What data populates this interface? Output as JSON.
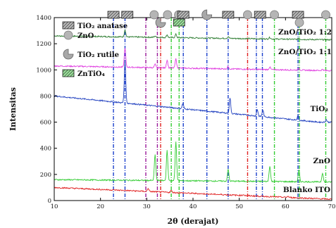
{
  "chart_data": {
    "type": "line",
    "xlabel": "2θ (derajat)",
    "ylabel": "Intensitas",
    "xlim": [
      10,
      70
    ],
    "ylim": [
      0,
      1400
    ],
    "x_ticks": [
      10,
      20,
      30,
      40,
      50,
      60,
      70
    ],
    "y_ticks": [
      0,
      200,
      400,
      600,
      800,
      1000,
      1200,
      1400
    ],
    "legend": [
      {
        "label": "TiO₂ anatase",
        "marker": "hatched-rectangle"
      },
      {
        "label": "ZnO",
        "marker": "circle"
      },
      {
        "label": "TiO₂ rutile",
        "marker": "pie-notch"
      },
      {
        "label": "ZnTiO₄",
        "marker": "hatched-rectangle-green"
      }
    ],
    "series": [
      {
        "name": "ZnO/TiO₂ 1:2",
        "color": "#2e7d32",
        "baseline": 1260,
        "slope": -0.5,
        "peaks": [
          [
            25.3,
            55
          ],
          [
            31.8,
            10
          ],
          [
            34.4,
            20
          ],
          [
            36.3,
            25
          ],
          [
            47.6,
            12
          ],
          [
            56.6,
            12
          ],
          [
            62.9,
            10
          ]
        ]
      },
      {
        "name": "ZnO/TiO₂ 1:1",
        "color": "#e040e0",
        "baseline": 1030,
        "slope": -0.6,
        "peaks": [
          [
            25.3,
            150
          ],
          [
            31.8,
            25
          ],
          [
            34.4,
            60
          ],
          [
            36.3,
            70
          ],
          [
            47.6,
            20
          ],
          [
            56.6,
            20
          ],
          [
            62.9,
            15
          ],
          [
            68.0,
            10
          ]
        ]
      },
      {
        "name": "TiO₂",
        "color": "#1f3fbf",
        "baseline": 800,
        "slope": -3.5,
        "minimum": 600,
        "peaks": [
          [
            25.3,
            330
          ],
          [
            37.8,
            40
          ],
          [
            48.0,
            120
          ],
          [
            53.9,
            50
          ],
          [
            55.1,
            50
          ],
          [
            62.7,
            40
          ],
          [
            68.8,
            20
          ]
        ]
      },
      {
        "name": "ZnO",
        "color": "#33cc33",
        "baseline": 160,
        "slope": -0.3,
        "peaks": [
          [
            31.8,
            200
          ],
          [
            34.4,
            230
          ],
          [
            36.3,
            300
          ],
          [
            47.6,
            90
          ],
          [
            56.6,
            120
          ],
          [
            62.9,
            90
          ],
          [
            68.0,
            70
          ]
        ]
      },
      {
        "name": "Blanko ITO",
        "color": "#e02020",
        "baseline": 100,
        "slope": -1.5,
        "minimum": 10,
        "peaks": [
          [
            30.3,
            25
          ],
          [
            35.3,
            15
          ],
          [
            50.9,
            8
          ],
          [
            60.5,
            8
          ]
        ]
      }
    ],
    "reference_lines": [
      {
        "x": 22.8,
        "color": "#1a3fcc"
      },
      {
        "x": 25.3,
        "color": "#1a3fcc"
      },
      {
        "x": 29.8,
        "color": "#9a1a9a"
      },
      {
        "x": 32.3,
        "color": "#9a1a9a"
      },
      {
        "x": 33.0,
        "color": "#e02020"
      },
      {
        "x": 35.3,
        "color": "#33cc33"
      },
      {
        "x": 37.0,
        "color": "#33cc33"
      },
      {
        "x": 37.9,
        "color": "#1a3fcc"
      },
      {
        "x": 43.0,
        "color": "#1a3fcc"
      },
      {
        "x": 47.6,
        "color": "#1a3fcc"
      },
      {
        "x": 51.8,
        "color": "#e02020"
      },
      {
        "x": 53.7,
        "color": "#1a3fcc"
      },
      {
        "x": 55.0,
        "color": "#1a3fcc"
      },
      {
        "x": 57.6,
        "color": "#33cc33"
      },
      {
        "x": 62.7,
        "color": "#1a3fcc"
      },
      {
        "x": 63.0,
        "color": "#33cc33"
      },
      {
        "x": 68.7,
        "color": "#33cc33"
      }
    ],
    "top_markers": [
      {
        "x": 22.8,
        "marker": "hatched-rectangle"
      },
      {
        "x": 25.8,
        "marker": "hatched-rectangle"
      },
      {
        "x": 31.6,
        "marker": "circle"
      },
      {
        "x": 33.0,
        "marker": "pie-notch"
      },
      {
        "x": 34.5,
        "marker": "circle"
      },
      {
        "x": 36.9,
        "marker": "circle"
      },
      {
        "x": 37.0,
        "marker": "hatched-rectangle-green"
      },
      {
        "x": 37.9,
        "marker": "hatched-rectangle"
      },
      {
        "x": 43.0,
        "marker": "pie-notch"
      },
      {
        "x": 47.6,
        "marker": "hatched-rectangle"
      },
      {
        "x": 51.8,
        "marker": "circle"
      },
      {
        "x": 54.5,
        "marker": "hatched-rectangle"
      },
      {
        "x": 57.6,
        "marker": "circle"
      },
      {
        "x": 62.7,
        "marker": "hatched-rectangle"
      },
      {
        "x": 63.0,
        "marker": "circle"
      },
      {
        "x": 68.7,
        "marker": "circle"
      }
    ],
    "grid": false,
    "legend_position": "top-left"
  }
}
